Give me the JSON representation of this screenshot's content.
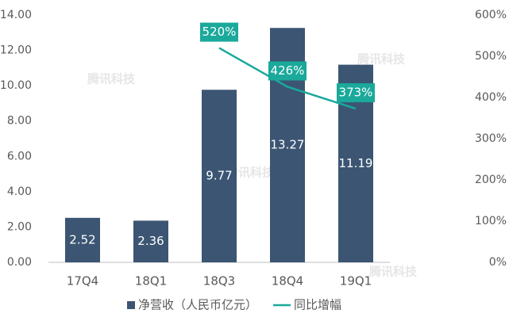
{
  "chart_data": {
    "type": "bar_line",
    "categories": [
      "17Q4",
      "18Q1",
      "18Q3",
      "18Q4",
      "19Q1"
    ],
    "series": [
      {
        "name": "净营收（人民币亿元）",
        "type": "bar",
        "color": "#3b5573",
        "values": [
          2.52,
          2.36,
          9.77,
          13.27,
          11.19
        ],
        "value_labels": [
          "2.52",
          "2.36",
          "9.77",
          "13.27",
          "11.19"
        ]
      },
      {
        "name": "同比增幅",
        "type": "line",
        "axis": "y2",
        "color": "#1aa99b",
        "values": [
          null,
          null,
          520,
          426,
          373
        ],
        "value_labels": [
          null,
          null,
          "520%",
          "426%",
          "373%"
        ]
      }
    ],
    "ylim": [
      0,
      14
    ],
    "yticks": [
      {
        "value": 0,
        "label": "0.00"
      },
      {
        "value": 2,
        "label": "2.00"
      },
      {
        "value": 4,
        "label": "4.00"
      },
      {
        "value": 6,
        "label": "6.00"
      },
      {
        "value": 8,
        "label": "8.00"
      },
      {
        "value": 10,
        "label": "10.00"
      },
      {
        "value": 12,
        "label": "12.00"
      },
      {
        "value": 14,
        "label": "14.00"
      }
    ],
    "y2lim": [
      0,
      600
    ],
    "y2ticks": [
      {
        "value": 0,
        "label": "0%"
      },
      {
        "value": 100,
        "label": "100%"
      },
      {
        "value": 200,
        "label": "200%"
      },
      {
        "value": 300,
        "label": "300%"
      },
      {
        "value": 400,
        "label": "400%"
      },
      {
        "value": 500,
        "label": "500%"
      },
      {
        "value": 600,
        "label": "600%"
      }
    ],
    "grid": false,
    "legend": "bottom",
    "watermark": "腾讯科技"
  }
}
